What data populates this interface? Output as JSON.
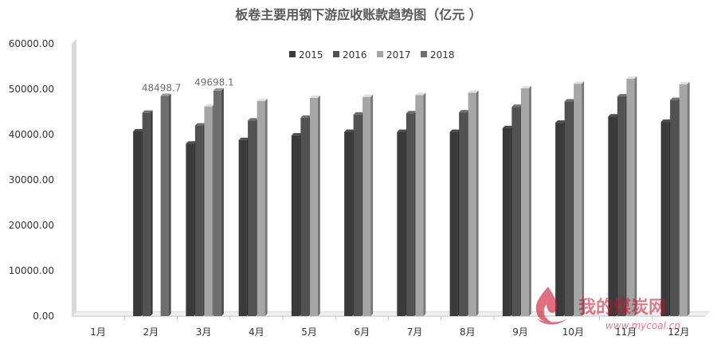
{
  "chart_data": {
    "type": "bar",
    "title": "板卷主要用钢下游应收账款趋势图（亿元 ）",
    "categories": [
      "1月",
      "2月",
      "3月",
      "4月",
      "5月",
      "6月",
      "7月",
      "8月",
      "9月",
      "10月",
      "11月",
      "12月"
    ],
    "yticks": [
      "0.00",
      "10000.00",
      "20000.00",
      "30000.00",
      "40000.00",
      "50000.00",
      "60000.00"
    ],
    "ylim": [
      0,
      60000
    ],
    "legend_position": "top",
    "grid": false,
    "series": [
      {
        "name": "2015",
        "color": "#3a3a3a",
        "values": [
          null,
          40700,
          38000,
          38800,
          39800,
          40600,
          40600,
          40600,
          41400,
          42600,
          44000,
          42800
        ]
      },
      {
        "name": "2016",
        "color": "#525252",
        "values": [
          null,
          44800,
          42000,
          43100,
          43700,
          44400,
          44700,
          44900,
          46100,
          47300,
          48400,
          47600
        ]
      },
      {
        "name": "2017",
        "color": "#a6a6a6",
        "values": [
          null,
          null,
          46200,
          47400,
          48100,
          48300,
          48700,
          49200,
          50200,
          51200,
          52300,
          51100
        ]
      },
      {
        "name": "2018",
        "color": "#6e6e6e",
        "values": [
          null,
          48498.7,
          49698.1,
          null,
          null,
          null,
          null,
          null,
          null,
          null,
          null,
          null
        ]
      }
    ],
    "data_labels": [
      {
        "text": "48498.7",
        "series": 3,
        "category": 1
      },
      {
        "text": "49698.1",
        "series": 3,
        "category": 2
      }
    ]
  },
  "watermark": {
    "text": "我的煤炭网",
    "url": "www.mycoal.cn",
    "icon": "flame-logo-icon",
    "color": "#c8102e"
  }
}
